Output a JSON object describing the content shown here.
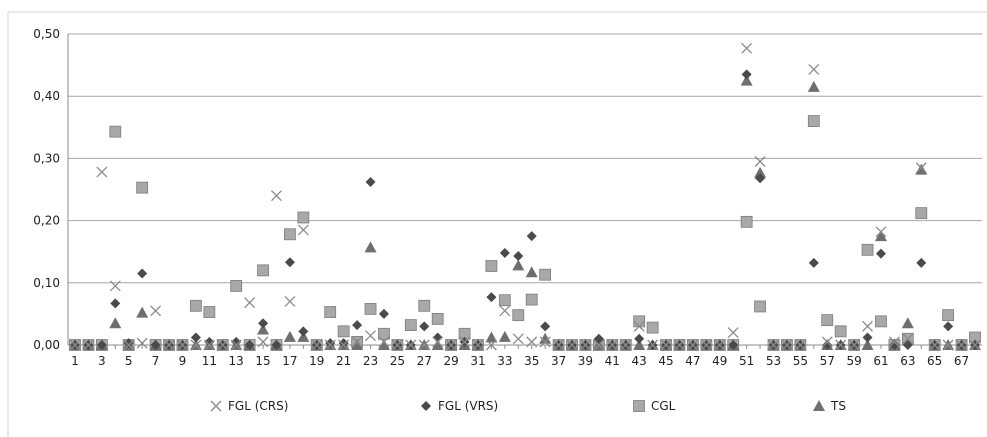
{
  "chart_data": {
    "type": "scatter",
    "title": "",
    "xlabel": "",
    "ylabel": "",
    "ylim": [
      0,
      0.5
    ],
    "xlim": [
      1,
      68
    ],
    "grid": true,
    "legend_placement": "bottom",
    "y_ticks": [
      "0,00",
      "0,10",
      "0,20",
      "0,30",
      "0,40",
      "0,50"
    ],
    "x_ticks": [
      "1",
      "3",
      "5",
      "7",
      "9",
      "11",
      "13",
      "15",
      "17",
      "19",
      "21",
      "23",
      "25",
      "27",
      "29",
      "31",
      "33",
      "35",
      "37",
      "39",
      "41",
      "43",
      "45",
      "47",
      "49",
      "51",
      "53",
      "55",
      "57",
      "59",
      "61",
      "63",
      "65",
      "67"
    ],
    "series": [
      {
        "name": "FGL (CRS)",
        "marker": "x",
        "color": "#8a8a8a",
        "x": [
          1,
          2,
          3,
          4,
          5,
          6,
          7,
          8,
          9,
          10,
          11,
          12,
          13,
          14,
          15,
          16,
          17,
          18,
          19,
          20,
          21,
          22,
          23,
          24,
          25,
          26,
          27,
          28,
          29,
          30,
          31,
          32,
          33,
          34,
          35,
          36,
          37,
          38,
          39,
          40,
          41,
          42,
          43,
          44,
          45,
          46,
          47,
          48,
          49,
          50,
          51,
          52,
          53,
          54,
          55,
          56,
          57,
          58,
          59,
          60,
          61,
          62,
          63,
          64,
          65,
          66,
          67,
          68
        ],
        "y": [
          0.0,
          0.0,
          0.278,
          0.095,
          0.0,
          0.003,
          0.055,
          0.0,
          0.0,
          0.0,
          0.0,
          0.0,
          0.0,
          0.068,
          0.005,
          0.24,
          0.07,
          0.185,
          0.0,
          0.0,
          0.0,
          0.005,
          0.015,
          0.005,
          0.0,
          0.0,
          0.0,
          0.005,
          0.0,
          0.005,
          0.0,
          0.0,
          0.055,
          0.01,
          0.005,
          0.005,
          0.0,
          0.0,
          0.0,
          0.0,
          0.0,
          0.0,
          0.03,
          0.0,
          0.0,
          0.0,
          0.0,
          0.0,
          0.0,
          0.02,
          0.477,
          0.295,
          0.0,
          0.0,
          0.0,
          0.443,
          0.005,
          0.0,
          0.0,
          0.03,
          0.182,
          0.005,
          0.01,
          0.285,
          0.0,
          0.0,
          0.0,
          0.0
        ]
      },
      {
        "name": "FGL (VRS)",
        "marker": "diamond",
        "color": "#4a4a4a",
        "x": [
          1,
          2,
          3,
          4,
          5,
          6,
          7,
          8,
          9,
          10,
          11,
          12,
          13,
          14,
          15,
          16,
          17,
          18,
          19,
          20,
          21,
          22,
          23,
          24,
          25,
          26,
          27,
          28,
          29,
          30,
          31,
          32,
          33,
          34,
          35,
          36,
          37,
          38,
          39,
          40,
          41,
          42,
          43,
          44,
          45,
          46,
          47,
          48,
          49,
          50,
          51,
          52,
          53,
          54,
          55,
          56,
          57,
          58,
          59,
          60,
          61,
          62,
          63,
          64,
          65,
          66,
          67,
          68
        ],
        "y": [
          0.0,
          0.0,
          0.0,
          0.067,
          0.003,
          0.115,
          0.0,
          0.0,
          0.0,
          0.012,
          0.005,
          0.0,
          0.005,
          0.0,
          0.035,
          0.0,
          0.133,
          0.022,
          0.0,
          0.003,
          0.003,
          0.032,
          0.262,
          0.05,
          0.0,
          0.0,
          0.03,
          0.012,
          0.0,
          0.005,
          0.0,
          0.077,
          0.148,
          0.143,
          0.175,
          0.03,
          0.0,
          0.0,
          0.0,
          0.01,
          0.0,
          0.0,
          0.01,
          0.0,
          0.0,
          0.0,
          0.0,
          0.0,
          0.0,
          0.0,
          0.435,
          0.268,
          0.0,
          0.0,
          0.0,
          0.132,
          0.0,
          0.0,
          0.0,
          0.012,
          0.147,
          0.0,
          0.0,
          0.132,
          0.0,
          0.03,
          0.0,
          0.0
        ]
      },
      {
        "name": "CGL",
        "marker": "square",
        "color": "#a8a8a8",
        "x": [
          1,
          2,
          3,
          4,
          5,
          6,
          7,
          8,
          9,
          10,
          11,
          12,
          13,
          14,
          15,
          16,
          17,
          18,
          19,
          20,
          21,
          22,
          23,
          24,
          25,
          26,
          27,
          28,
          29,
          30,
          31,
          32,
          33,
          34,
          35,
          36,
          37,
          38,
          39,
          40,
          41,
          42,
          43,
          44,
          45,
          46,
          47,
          48,
          49,
          50,
          51,
          52,
          53,
          54,
          55,
          56,
          57,
          58,
          59,
          60,
          61,
          62,
          63,
          64,
          65,
          66,
          67,
          68
        ],
        "y": [
          0.0,
          0.0,
          0.0,
          0.343,
          0.0,
          0.253,
          0.0,
          0.0,
          0.0,
          0.063,
          0.053,
          0.0,
          0.095,
          0.0,
          0.12,
          0.0,
          0.178,
          0.205,
          0.0,
          0.053,
          0.022,
          0.005,
          0.058,
          0.018,
          0.0,
          0.032,
          0.063,
          0.042,
          0.0,
          0.018,
          0.0,
          0.127,
          0.072,
          0.048,
          0.073,
          0.113,
          0.0,
          0.0,
          0.0,
          0.0,
          0.0,
          0.0,
          0.038,
          0.028,
          0.0,
          0.0,
          0.0,
          0.0,
          0.0,
          0.0,
          0.198,
          0.062,
          0.0,
          0.0,
          0.0,
          0.36,
          0.04,
          0.022,
          0.0,
          0.153,
          0.038,
          0.0,
          0.01,
          0.212,
          0.0,
          0.048,
          0.0,
          0.012
        ]
      },
      {
        "name": "TS",
        "marker": "triangle",
        "color": "#6e6e6e",
        "x": [
          1,
          2,
          3,
          4,
          5,
          6,
          7,
          8,
          9,
          10,
          11,
          12,
          13,
          14,
          15,
          16,
          17,
          18,
          19,
          20,
          21,
          22,
          23,
          24,
          25,
          26,
          27,
          28,
          29,
          30,
          31,
          32,
          33,
          34,
          35,
          36,
          37,
          38,
          39,
          40,
          41,
          42,
          43,
          44,
          45,
          46,
          47,
          48,
          49,
          50,
          51,
          52,
          53,
          54,
          55,
          56,
          57,
          58,
          59,
          60,
          61,
          62,
          63,
          64,
          65,
          66,
          67,
          68
        ],
        "y": [
          0.0,
          0.0,
          0.0,
          0.035,
          0.0,
          0.052,
          0.0,
          0.0,
          0.0,
          0.0,
          0.0,
          0.0,
          0.0,
          0.0,
          0.025,
          0.0,
          0.013,
          0.013,
          0.0,
          0.0,
          0.0,
          0.0,
          0.157,
          0.0,
          0.0,
          0.0,
          0.0,
          0.0,
          0.0,
          0.0,
          0.0,
          0.012,
          0.013,
          0.128,
          0.117,
          0.01,
          0.0,
          0.0,
          0.0,
          0.0,
          0.0,
          0.0,
          0.0,
          0.0,
          0.0,
          0.0,
          0.0,
          0.0,
          0.0,
          0.0,
          0.425,
          0.277,
          0.0,
          0.0,
          0.0,
          0.415,
          0.0,
          0.0,
          0.0,
          0.0,
          0.175,
          0.0,
          0.035,
          0.282,
          0.0,
          0.0,
          0.0,
          0.0
        ]
      }
    ]
  }
}
